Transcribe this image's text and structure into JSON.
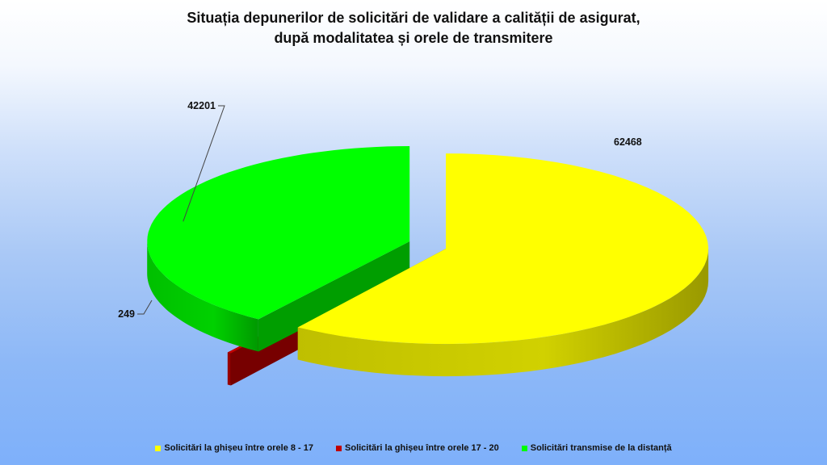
{
  "chart_data": {
    "type": "pie",
    "title_line1": "Situația depunerilor de solicitări de validare a calității de asigurat,",
    "title_line2": "după modalitatea și orele de transmitere",
    "categories": [
      "Solicitări la ghișeu între orele 8 - 17",
      "Solicitări la ghișeu între orele 17 - 20",
      "Solicitări transmise de la distanță"
    ],
    "values": [
      62468,
      249,
      42201
    ],
    "value_labels": [
      "62468",
      "249",
      "42201"
    ],
    "colors": [
      "#ffff00",
      "#c00000",
      "#00ff00"
    ],
    "style": "3d-exploded",
    "legend_position": "bottom"
  }
}
